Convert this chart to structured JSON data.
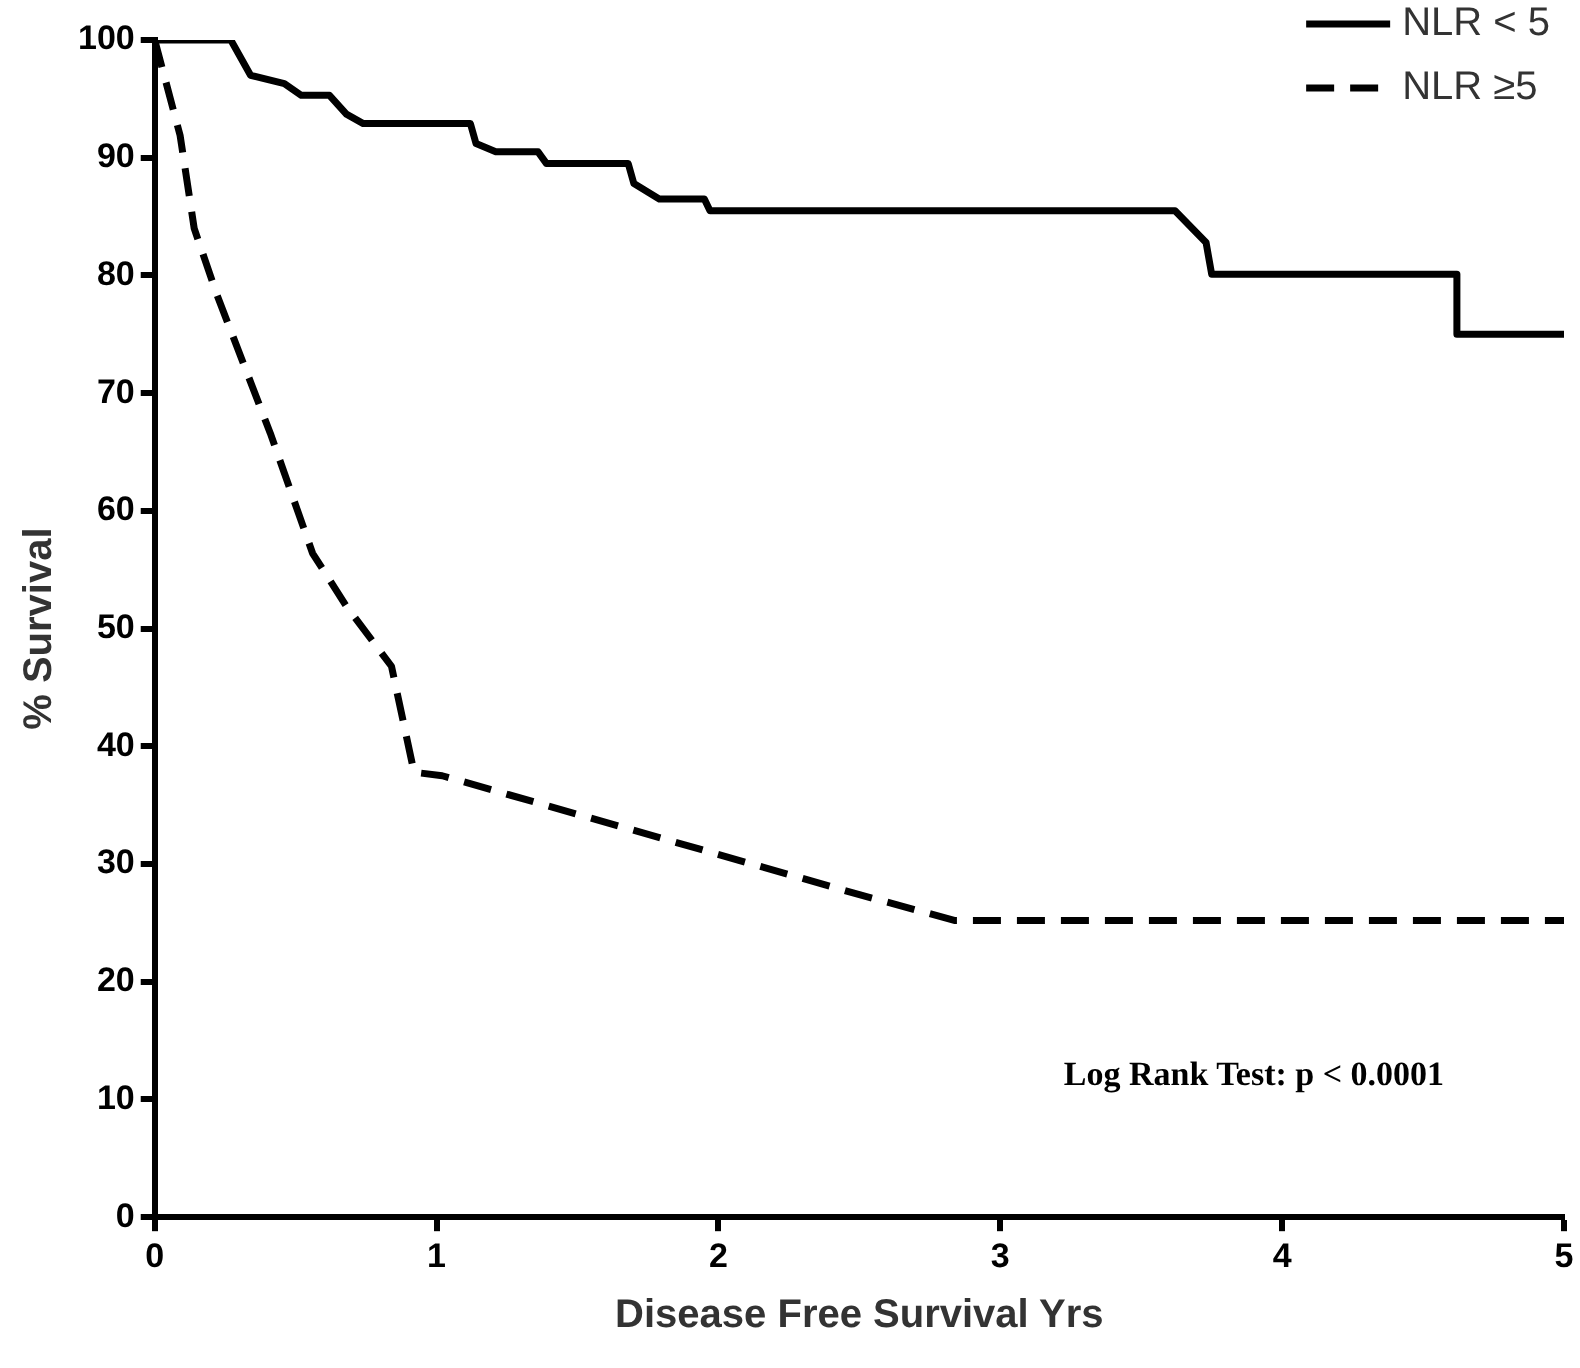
{
  "chart_data": {
    "type": "line",
    "xlabel": "Disease Free Survival Yrs",
    "ylabel": "% Survival",
    "xlim": [
      0,
      5
    ],
    "xticks": [
      0,
      1,
      2,
      3,
      4,
      5
    ],
    "ylim": [
      0,
      100
    ],
    "yticks": [
      0,
      10,
      20,
      30,
      40,
      50,
      60,
      70,
      80,
      90,
      100
    ],
    "grid": false,
    "legend": "top right",
    "marker": "none",
    "annotations": [
      "Log Rank Test: p < 0.0001"
    ],
    "series": [
      {
        "name": "NLR < 5",
        "color": "#000000",
        "line_style": "solid",
        "x": [
          0,
          0.27,
          0.34,
          0.46,
          0.52,
          0.62,
          0.68,
          0.74,
          1.12,
          1.14,
          1.21,
          1.36,
          1.39,
          1.68,
          1.7,
          1.79,
          1.95,
          1.97,
          3.62,
          3.73,
          3.75,
          4.62,
          4.62,
          5
        ],
        "values": [
          100,
          100,
          97,
          96.3,
          95.3,
          95.3,
          93.7,
          92.9,
          92.9,
          91.2,
          90.5,
          90.5,
          89.5,
          89.5,
          87.8,
          86.5,
          86.5,
          85.5,
          85.5,
          82.8,
          80.1,
          80.1,
          75,
          75
        ]
      },
      {
        "name": "NLR ≥5",
        "color": "#000000",
        "line_style": "dashed",
        "x": [
          0,
          0.09,
          0.14,
          0.22,
          0.41,
          0.56,
          0.68,
          0.84,
          0.92,
          1.02,
          2.5,
          2.84,
          5
        ],
        "values": [
          100,
          91.9,
          84,
          78.4,
          66.6,
          56.4,
          51.9,
          46.8,
          37.8,
          37.5,
          27.4,
          25.2,
          25.2
        ]
      }
    ]
  }
}
